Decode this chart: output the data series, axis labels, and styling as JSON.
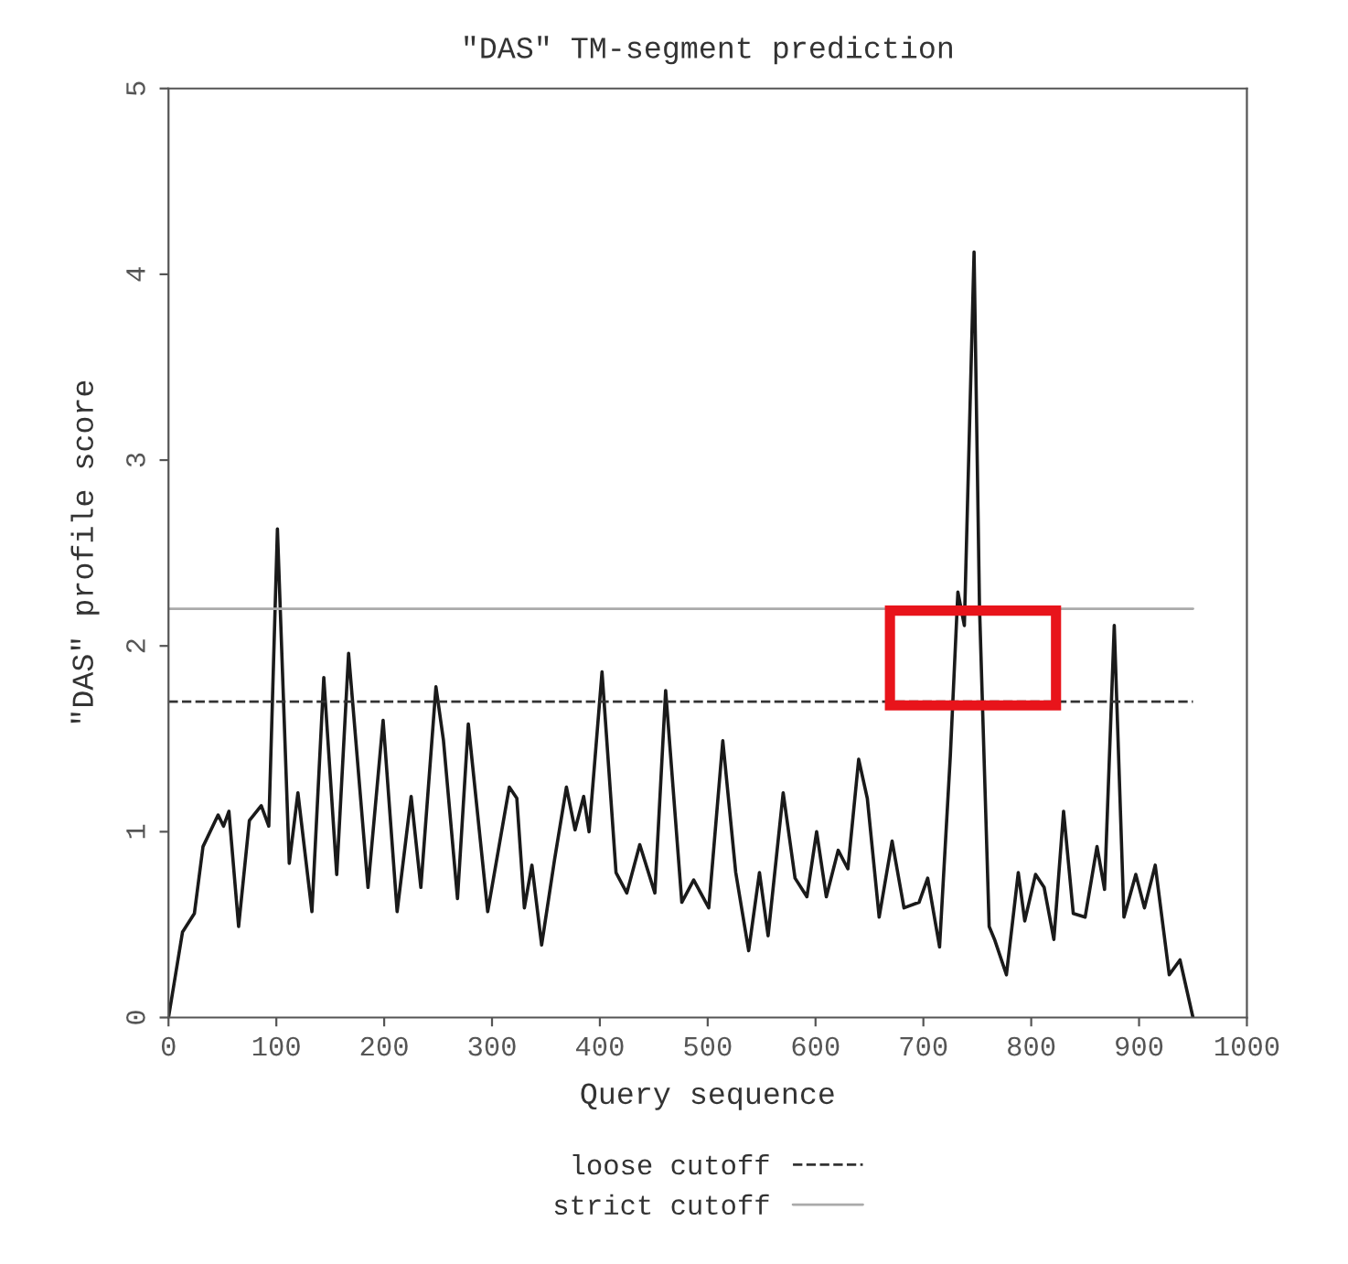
{
  "chart_data": {
    "type": "line",
    "title": "\"DAS\" TM-segment prediction",
    "xlabel": "Query sequence",
    "ylabel": "\"DAS\" profile score",
    "x": [
      0,
      13,
      24,
      32,
      46,
      51,
      56,
      65,
      75,
      86,
      93,
      101,
      112,
      120,
      133,
      144,
      156,
      167,
      185,
      199,
      212,
      225,
      234,
      248,
      255,
      268,
      278,
      296,
      316,
      323,
      330,
      337,
      346,
      358,
      369,
      377,
      385,
      390,
      402,
      415,
      425,
      437,
      451,
      461,
      476,
      487,
      501,
      514,
      526,
      538,
      548,
      556,
      570,
      581,
      592,
      601,
      610,
      621,
      630,
      640,
      648,
      659,
      671,
      682,
      696,
      704,
      715,
      725,
      732,
      738,
      747,
      752,
      761,
      766,
      777,
      788,
      794,
      804,
      812,
      821,
      830,
      839,
      850,
      861,
      868,
      877,
      886,
      897,
      905,
      915,
      928,
      938,
      950
    ],
    "series": [
      {
        "color": "#1a1a1a",
        "values": [
          0,
          0.46,
          0.56,
          0.92,
          1.09,
          1.03,
          1.11,
          0.49,
          1.06,
          1.14,
          1.03,
          2.63,
          0.83,
          1.21,
          0.57,
          1.83,
          0.77,
          1.96,
          0.7,
          1.6,
          0.57,
          1.19,
          0.7,
          1.78,
          1.49,
          0.64,
          1.58,
          0.57,
          1.24,
          1.18,
          0.59,
          0.82,
          0.39,
          0.85,
          1.24,
          1.01,
          1.19,
          1.0,
          1.86,
          0.78,
          0.67,
          0.93,
          0.67,
          1.76,
          0.62,
          0.74,
          0.59,
          1.49,
          0.78,
          0.36,
          0.78,
          0.44,
          1.21,
          0.75,
          0.65,
          1.0,
          0.65,
          0.9,
          0.8,
          1.39,
          1.18,
          0.54,
          0.95,
          0.59,
          0.62,
          0.75,
          0.38,
          1.41,
          2.29,
          2.11,
          4.12,
          2.22,
          0.49,
          0.42,
          0.23,
          0.78,
          0.52,
          0.77,
          0.7,
          0.42,
          1.11,
          0.56,
          0.54,
          0.92,
          0.69,
          2.11,
          0.54,
          0.77,
          0.59,
          0.82,
          0.23,
          0.31,
          0
        ]
      }
    ],
    "xlim": [
      0,
      1000
    ],
    "xticks": [
      0,
      100,
      200,
      300,
      400,
      500,
      600,
      700,
      800,
      900,
      1000
    ],
    "ylim": [
      0,
      5
    ],
    "yticks": [
      0,
      1,
      2,
      3,
      4,
      5
    ],
    "ref_lines": [
      {
        "axis": "y",
        "value": 1.7,
        "label": "loose cutoff",
        "line_style": "dashed",
        "color": "#333333"
      },
      {
        "axis": "y",
        "value": 2.2,
        "label": "strict cutoff",
        "line_style": "solid",
        "color": "#aaaaaa"
      }
    ],
    "legend": "bottom",
    "grid": false,
    "marker": "none",
    "line_style": "solid"
  }
}
